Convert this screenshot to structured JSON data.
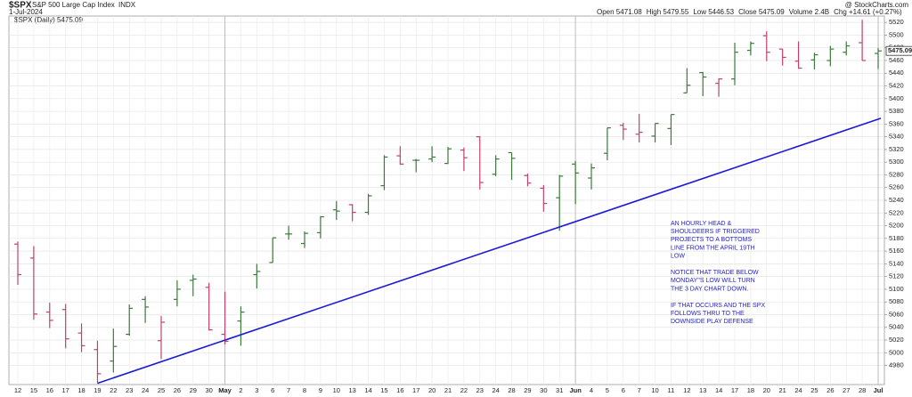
{
  "chart_data": {
    "type": "ohlc",
    "title": "$SPX",
    "subtitle": "S&P 500 Large Cap Index",
    "exchange": "INDX",
    "date": "1-Jul-2024",
    "source": "@ StockCharts.com",
    "stats": [
      "Open 5471.08",
      "High 5479.55",
      "Low 5446.53",
      "Close 5475.09",
      "Volume 2.4B",
      "Chg +14.61 (+0.27%)"
    ],
    "legend": "$SPX (Daily) 5475.09",
    "last_price": 5475.09,
    "categories": [
      "12",
      "15",
      "16",
      "17",
      "18",
      "19",
      "22",
      "23",
      "24",
      "25",
      "26",
      "29",
      "30",
      "May",
      "2",
      "3",
      "6",
      "7",
      "8",
      "9",
      "10",
      "13",
      "14",
      "15",
      "16",
      "17",
      "20",
      "21",
      "22",
      "23",
      "24",
      "28",
      "29",
      "30",
      "31",
      "Jun",
      "4",
      "5",
      "6",
      "7",
      "10",
      "11",
      "12",
      "13",
      "14",
      "17",
      "18",
      "20",
      "21",
      "24",
      "25",
      "26",
      "27",
      "28",
      "Jul"
    ],
    "open": [
      5171,
      5149,
      5064,
      5068,
      5031,
      5005,
      4987,
      5029,
      5084,
      5019,
      5084,
      5114,
      5103,
      5029,
      5050,
      5123,
      5142,
      5187,
      5172,
      5189,
      5225,
      5233,
      5221,
      5263,
      5310,
      5303,
      5305,
      5298,
      5319,
      5340,
      5281,
      5315,
      5279,
      5259,
      5244,
      5297,
      5275,
      5314,
      5358,
      5344,
      5341,
      5353,
      5409,
      5441,
      5424,
      5431,
      5476,
      5499,
      5478,
      5459,
      5461,
      5460,
      5473,
      5488,
      5471.08
    ],
    "high": [
      5175,
      5168,
      5079,
      5077,
      5046,
      5019,
      5038,
      5076,
      5089,
      5058,
      5114,
      5123,
      5110,
      5096,
      5073,
      5140,
      5181,
      5200,
      5191,
      5215,
      5239,
      5234,
      5250,
      5311,
      5325,
      5305,
      5325,
      5324,
      5323,
      5341,
      5311,
      5315,
      5282,
      5264,
      5280,
      5302,
      5298,
      5354,
      5362,
      5376,
      5361,
      5375,
      5448,
      5442,
      5432,
      5488,
      5490,
      5506,
      5478,
      5490,
      5472,
      5483,
      5490,
      5524,
      5479.55
    ],
    "low": [
      5107,
      5052,
      5039,
      5007,
      5001,
      4953,
      4969,
      5027,
      5047,
      4990,
      5073,
      5089,
      5035,
      5013,
      5011,
      5101,
      5142,
      5178,
      5165,
      5180,
      5209,
      5207,
      5217,
      5256,
      5296,
      5284,
      5300,
      5297,
      5286,
      5257,
      5278,
      5272,
      5262,
      5222,
      5192,
      5234,
      5257,
      5303,
      5335,
      5331,
      5331,
      5327,
      5409,
      5404,
      5403,
      5421,
      5468,
      5459,
      5452,
      5447,
      5446,
      5451,
      5468,
      5460,
      5446.53
    ],
    "close": [
      5123,
      5061,
      5051,
      5022,
      5011,
      4967,
      5010,
      5070,
      5072,
      5048,
      5100,
      5116,
      5036,
      5018,
      5064,
      5128,
      5181,
      5187,
      5188,
      5214,
      5223,
      5221,
      5247,
      5308,
      5297,
      5303,
      5308,
      5321,
      5307,
      5268,
      5305,
      5306,
      5267,
      5235,
      5278,
      5283,
      5291,
      5354,
      5352,
      5347,
      5361,
      5375,
      5421,
      5434,
      5431,
      5473,
      5487,
      5473,
      5465,
      5448,
      5469,
      5478,
      5483,
      5460,
      5475.09
    ],
    "up_color": "#3b7a3b",
    "down_color": "#c2416a",
    "ylim": [
      4950,
      5530
    ],
    "yticks": [
      4980,
      5000,
      5020,
      5040,
      5060,
      5080,
      5100,
      5120,
      5140,
      5160,
      5180,
      5200,
      5220,
      5240,
      5260,
      5280,
      5300,
      5320,
      5340,
      5360,
      5380,
      5400,
      5420,
      5440,
      5460,
      5480,
      5500,
      5520
    ],
    "grid": true,
    "trendline": {
      "x": [
        "19",
        "Jul"
      ],
      "y": [
        4952,
        5369
      ],
      "color": "#1a1ad8"
    },
    "annotation": [
      [
        "AN HOURLY HEAD &",
        "SHOULDEERS IF TRIGGERED",
        "PROJECTS TO A BOTTOMS",
        "LINE FROM THE APRIL 19TH",
        "LOW"
      ],
      [
        "NOTICE THAT TRADE BELOW",
        "MONDAY''S LOW WILL TURN",
        "THE 3 DAY CHART DOWN."
      ],
      [
        "IF THAT OCCURS AND THE SPX",
        "FOLLOWS THRU TO THE",
        "DOWNSIDE PLAY DEFENSE"
      ]
    ]
  }
}
